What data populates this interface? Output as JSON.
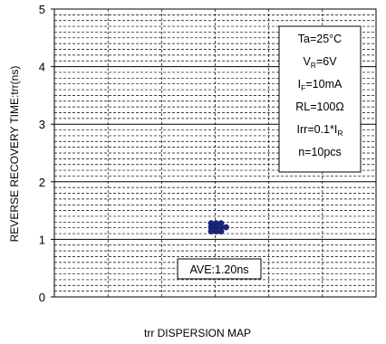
{
  "chart_data": {
    "type": "scatter",
    "title": "",
    "xlabel": "trr DISPERSION MAP",
    "ylabel": "REVERSE RECOVERY TIME:trr(ns)",
    "ylim": [
      0,
      5
    ],
    "yticks": [
      "0",
      "1",
      "2",
      "3",
      "4",
      "5"
    ],
    "x_hidden": true,
    "grid": true,
    "points": [
      {
        "col": 0,
        "y": 1.28
      },
      {
        "col": 1,
        "y": 1.28
      },
      {
        "col": 2,
        "y": 1.28
      },
      {
        "col": 0,
        "y": 1.21
      },
      {
        "col": 1,
        "y": 1.21
      },
      {
        "col": 2,
        "y": 1.21
      },
      {
        "col": 3,
        "y": 1.21
      },
      {
        "col": 0,
        "y": 1.14
      },
      {
        "col": 1,
        "y": 1.14
      },
      {
        "col": 2,
        "y": 1.14
      }
    ],
    "point_color": "#1a237e",
    "conditions": [
      {
        "main": "Ta=25°C",
        "sub": "",
        "tail": ""
      },
      {
        "main": "V",
        "sub": "R",
        "tail": "=6V"
      },
      {
        "main": "I",
        "sub": "F",
        "tail": "=10mA"
      },
      {
        "main": "RL=100Ω",
        "sub": "",
        "tail": ""
      },
      {
        "main": "Irr=0.1*I",
        "sub": "R",
        "tail": ""
      },
      {
        "main": "n=10pcs",
        "sub": "",
        "tail": ""
      }
    ],
    "annotation": "AVE:1.20ns"
  }
}
